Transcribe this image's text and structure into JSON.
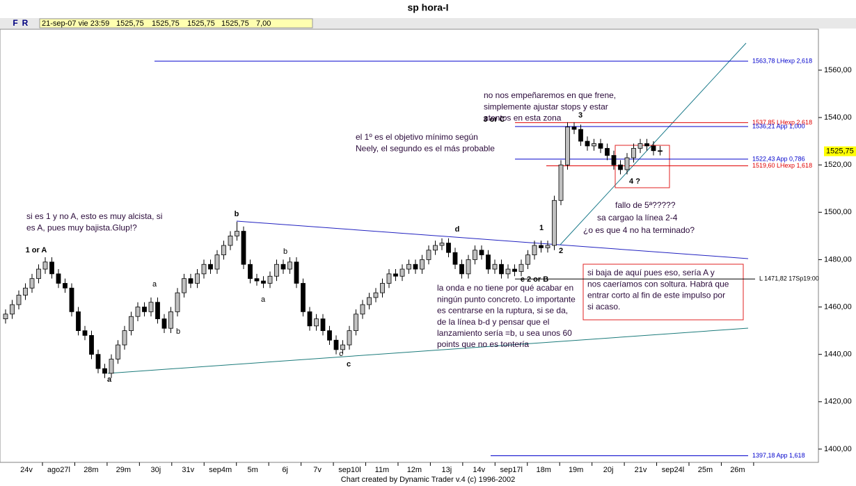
{
  "toolbar": {
    "buttons": [
      "F",
      "R"
    ],
    "info": [
      "21-sep-07 vie 23:59",
      "1525,75",
      "1525,75",
      "1525,75",
      "1525,75",
      "7,00"
    ]
  },
  "chart_data": {
    "type": "candlestick",
    "title": "sp hora-I",
    "x_labels": [
      "24v",
      "ago27l",
      "28m",
      "29m",
      "30j",
      "31v",
      "sep4m",
      "5m",
      "6j",
      "7v",
      "sep10l",
      "11m",
      "12m",
      "13j",
      "14v",
      "sep17l",
      "18m",
      "19m",
      "20j",
      "21v",
      "sep24l",
      "25m",
      "26m"
    ],
    "open": [
      1455,
      1457,
      1461,
      1465,
      1468,
      1472,
      1476,
      1479,
      1474,
      1470,
      1468,
      1458,
      1450,
      1448,
      1440,
      1434,
      1432,
      1438,
      1444,
      1450,
      1456,
      1460,
      1458,
      1462,
      1455,
      1451,
      1458,
      1466,
      1472,
      1470,
      1474,
      1478,
      1476,
      1482,
      1486,
      1490,
      1492,
      1478,
      1472,
      1471,
      1470,
      1473,
      1478,
      1476,
      1479,
      1470,
      1458,
      1452,
      1455,
      1450,
      1446,
      1442,
      1444,
      1450,
      1457,
      1461,
      1464,
      1466,
      1470,
      1474,
      1473,
      1476,
      1478,
      1476,
      1480,
      1484,
      1486,
      1487,
      1483,
      1478,
      1474,
      1480,
      1484,
      1482,
      1476,
      1478,
      1474,
      1476,
      1475,
      1478,
      1482,
      1486,
      1485,
      1486,
      1505,
      1520,
      1536,
      1535,
      1530,
      1528,
      1529,
      1527,
      1524,
      1520,
      1518,
      1523,
      1527,
      1529,
      1528,
      1526
    ],
    "high": [
      1459,
      1463,
      1467,
      1470,
      1474,
      1478,
      1481,
      1481,
      1476,
      1472,
      1470,
      1460,
      1452,
      1450,
      1442,
      1436,
      1440,
      1446,
      1452,
      1458,
      1462,
      1462,
      1464,
      1464,
      1457,
      1460,
      1468,
      1474,
      1474,
      1476,
      1480,
      1480,
      1484,
      1488,
      1492,
      1496,
      1494,
      1480,
      1474,
      1473,
      1475,
      1480,
      1480,
      1481,
      1481,
      1472,
      1460,
      1457,
      1457,
      1452,
      1448,
      1446,
      1452,
      1459,
      1463,
      1466,
      1468,
      1472,
      1476,
      1476,
      1478,
      1480,
      1480,
      1482,
      1486,
      1488,
      1489,
      1489,
      1485,
      1480,
      1482,
      1486,
      1486,
      1484,
      1480,
      1480,
      1478,
      1478,
      1480,
      1484,
      1488,
      1488,
      1488,
      1507,
      1522,
      1538,
      1538,
      1537,
      1532,
      1531,
      1531,
      1529,
      1526,
      1522,
      1525,
      1529,
      1531,
      1531,
      1530,
      1528
    ],
    "low": [
      1453,
      1455,
      1459,
      1463,
      1466,
      1470,
      1474,
      1472,
      1468,
      1466,
      1456,
      1448,
      1446,
      1438,
      1432,
      1430,
      1430,
      1436,
      1442,
      1448,
      1454,
      1456,
      1456,
      1453,
      1449,
      1449,
      1456,
      1464,
      1468,
      1468,
      1472,
      1474,
      1474,
      1480,
      1484,
      1488,
      1476,
      1470,
      1469,
      1468,
      1468,
      1471,
      1474,
      1474,
      1468,
      1456,
      1450,
      1450,
      1448,
      1444,
      1440,
      1440,
      1442,
      1448,
      1455,
      1459,
      1462,
      1464,
      1468,
      1471,
      1471,
      1474,
      1474,
      1474,
      1478,
      1482,
      1484,
      1481,
      1476,
      1472,
      1472,
      1478,
      1480,
      1474,
      1474,
      1472,
      1472,
      1473,
      1473,
      1476,
      1480,
      1483,
      1483,
      1484,
      1503,
      1518,
      1533,
      1528,
      1526,
      1526,
      1525,
      1522,
      1518,
      1516,
      1516,
      1521,
      1525,
      1526,
      1524,
      1524
    ],
    "close": [
      1457,
      1461,
      1465,
      1468,
      1472,
      1476,
      1479,
      1474,
      1470,
      1468,
      1458,
      1450,
      1448,
      1440,
      1434,
      1432,
      1438,
      1444,
      1450,
      1456,
      1460,
      1458,
      1462,
      1455,
      1451,
      1458,
      1466,
      1472,
      1470,
      1474,
      1478,
      1476,
      1482,
      1486,
      1490,
      1492,
      1478,
      1472,
      1471,
      1470,
      1473,
      1478,
      1476,
      1479,
      1470,
      1458,
      1452,
      1455,
      1450,
      1446,
      1442,
      1444,
      1450,
      1457,
      1461,
      1464,
      1466,
      1470,
      1474,
      1473,
      1476,
      1478,
      1476,
      1480,
      1484,
      1486,
      1487,
      1483,
      1478,
      1474,
      1480,
      1484,
      1482,
      1476,
      1478,
      1474,
      1476,
      1475,
      1478,
      1482,
      1486,
      1485,
      1486,
      1505,
      1520,
      1536,
      1535,
      1530,
      1528,
      1529,
      1527,
      1524,
      1520,
      1518,
      1523,
      1527,
      1529,
      1528,
      1526,
      1525.75
    ],
    "up_color": "#c0c0c0",
    "down_color": "#000000",
    "ylim": [
      1394.4,
      1577.3
    ],
    "yticks": [
      {
        "value": 1400,
        "label": "1400,00"
      },
      {
        "value": 1420,
        "label": "1420,00"
      },
      {
        "value": 1440,
        "label": "1440,00"
      },
      {
        "value": 1460,
        "label": "1460,00"
      },
      {
        "value": 1480,
        "label": "1480,00"
      },
      {
        "value": 1500,
        "label": "1500,00"
      },
      {
        "value": 1520,
        "label": "1520,00"
      },
      {
        "value": 1540,
        "label": "1540,00"
      },
      {
        "value": 1560,
        "label": "1560,00"
      }
    ],
    "last_price": {
      "value": 1525.75,
      "label": "1525,75"
    },
    "levels": [
      {
        "value": 1563.78,
        "label": "1563,78 LHexp 2,618",
        "color": "#0000cc"
      },
      {
        "value": 1537.85,
        "label": "1537,85 LHexp 2,618",
        "color": "#e00000"
      },
      {
        "value": 1536.21,
        "label": "1536,21 App 1,000",
        "color": "#0000cc"
      },
      {
        "value": 1522.43,
        "label": "1522,43 App 0,786",
        "color": "#0000cc"
      },
      {
        "value": 1519.6,
        "label": "1519,60 LHexp 1,618",
        "color": "#e00000"
      },
      {
        "value": 1471.82,
        "label": "L 1471,82 17Sp19:00",
        "color": "#000000"
      },
      {
        "value": 1397.18,
        "label": "1397,18 App 1,618",
        "color": "#0000cc"
      }
    ],
    "annotations": [
      {
        "lines": [
          "1 or A"
        ]
      },
      {
        "lines": [
          "a"
        ]
      },
      {
        "lines": [
          "a"
        ]
      },
      {
        "lines": [
          "b"
        ]
      },
      {
        "lines": [
          "b"
        ]
      },
      {
        "lines": [
          "a"
        ]
      },
      {
        "lines": [
          "b"
        ]
      },
      {
        "lines": [
          "c"
        ]
      },
      {
        "lines": [
          "c"
        ]
      },
      {
        "lines": [
          "d"
        ]
      },
      {
        "lines": [
          "e 2 or B"
        ]
      },
      {
        "lines": [
          "1"
        ]
      },
      {
        "lines": [
          "2"
        ]
      },
      {
        "lines": [
          "3 or C"
        ]
      },
      {
        "lines": [
          "3"
        ]
      },
      {
        "lines": [
          "4 ?"
        ]
      },
      {
        "lines": [
          "si es 1 y no A, esto es muy alcista, si",
          "es A, pues muy bajista.Glup!?"
        ]
      },
      {
        "lines": [
          "el 1º es el objetivo mínimo según",
          "Neely, el segundo es el más probable"
        ]
      },
      {
        "lines": [
          "no nos empeñaremos en que frene,",
          "simplemente ajustar stops y estar",
          "atentos en esta zona"
        ]
      },
      {
        "lines": [
          "fallo de 5ª?????"
        ]
      },
      {
        "lines": [
          "sa cargao la línea 2-4"
        ]
      },
      {
        "lines": [
          "¿o es que 4 no ha terminado?"
        ]
      },
      {
        "lines": [
          "la onda e no tiene por qué acabar en",
          "ningún punto concreto. Lo importante",
          "es centrarse en la ruptura, si se da,",
          "de la línea b-d y pensar que el",
          "lanzamiento sería =b, u sea unos 60",
          "points que no es tontería"
        ]
      },
      {
        "lines": [
          "si baja de aquí pues eso, sería A y",
          "nos caeríamos con soltura. Habrá que",
          "entrar corto al fin de este impulso por",
          "si acaso."
        ]
      }
    ]
  },
  "footer": "Chart created by Dynamic Trader v.4  (c) 1996-2002"
}
